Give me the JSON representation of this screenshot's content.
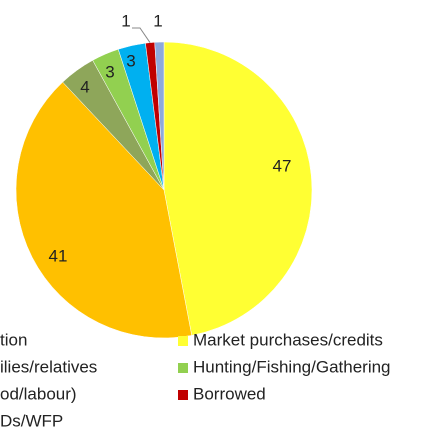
{
  "chart_data": {
    "type": "pie",
    "categories": [
      "Market purchases/credits",
      "tion",
      "od/labour)",
      "Hunting/Fishing/Gathering",
      "Ds/WFP",
      "Borrowed",
      "ilies/relatives"
    ],
    "values": [
      47,
      41,
      4,
      3,
      3,
      1,
      1
    ],
    "colors": [
      "#FFFF33",
      "#FFC000",
      "#8EA65A",
      "#92D050",
      "#00B0F0",
      "#C00000",
      "#8EA9DB"
    ]
  }
}
